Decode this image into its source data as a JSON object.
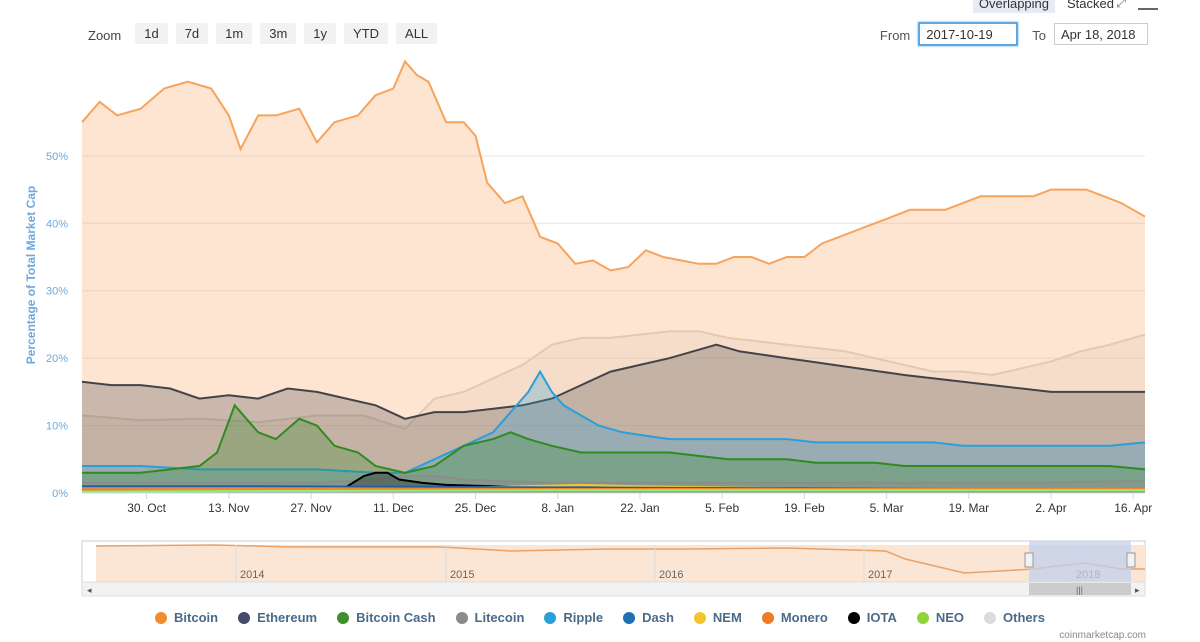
{
  "toolbar": {
    "zoom_label": "Zoom",
    "zoom_buttons": [
      "1d",
      "7d",
      "1m",
      "3m",
      "1y",
      "YTD",
      "ALL"
    ],
    "from_label": "From",
    "from_value": "2017-10-19",
    "to_label": "To",
    "to_value": "Apr 18, 2018",
    "mode_overlapping": "Overlapping",
    "mode_stacked": "Stacked"
  },
  "chart_data": {
    "type": "area",
    "ylabel": "Percentage of Total Market Cap",
    "yticks": [
      "0%",
      "10%",
      "20%",
      "30%",
      "40%",
      "50%"
    ],
    "ylim": [
      0,
      66
    ],
    "xlim": [
      0,
      181
    ],
    "xticks": [
      {
        "label": "30. Oct",
        "day": 11
      },
      {
        "label": "13. Nov",
        "day": 25
      },
      {
        "label": "27. Nov",
        "day": 39
      },
      {
        "label": "11. Dec",
        "day": 53
      },
      {
        "label": "25. Dec",
        "day": 67
      },
      {
        "label": "8. Jan",
        "day": 81
      },
      {
        "label": "22. Jan",
        "day": 95
      },
      {
        "label": "5. Feb",
        "day": 109
      },
      {
        "label": "19. Feb",
        "day": 123
      },
      {
        "label": "5. Mar",
        "day": 137
      },
      {
        "label": "19. Mar",
        "day": 151
      },
      {
        "label": "2. Apr",
        "day": 165
      },
      {
        "label": "16. Apr",
        "day": 179
      }
    ],
    "grid": true,
    "legend_position": "bottom",
    "series": [
      {
        "name": "Others",
        "color": "#d9d9d9",
        "points": [
          [
            0,
            11.5
          ],
          [
            10,
            10.8
          ],
          [
            20,
            11
          ],
          [
            30,
            10.5
          ],
          [
            40,
            11.5
          ],
          [
            48,
            11.5
          ],
          [
            55,
            9.5
          ],
          [
            60,
            14
          ],
          [
            65,
            15
          ],
          [
            70,
            17
          ],
          [
            75,
            19
          ],
          [
            80,
            22
          ],
          [
            85,
            23
          ],
          [
            90,
            23
          ],
          [
            95,
            23.5
          ],
          [
            100,
            24
          ],
          [
            105,
            24
          ],
          [
            110,
            23
          ],
          [
            115,
            22.5
          ],
          [
            120,
            22
          ],
          [
            125,
            21.5
          ],
          [
            130,
            21
          ],
          [
            135,
            20
          ],
          [
            140,
            19
          ],
          [
            145,
            18
          ],
          [
            150,
            18
          ],
          [
            155,
            17.5
          ],
          [
            160,
            18.5
          ],
          [
            165,
            19.5
          ],
          [
            170,
            21
          ],
          [
            175,
            22
          ],
          [
            181,
            23.5
          ]
        ]
      },
      {
        "name": "Bitcoin",
        "color": "#f7a35c",
        "points": [
          [
            0,
            55
          ],
          [
            3,
            58
          ],
          [
            6,
            56
          ],
          [
            10,
            57
          ],
          [
            14,
            60
          ],
          [
            18,
            61
          ],
          [
            22,
            60
          ],
          [
            25,
            56
          ],
          [
            27,
            51
          ],
          [
            30,
            56
          ],
          [
            33,
            56
          ],
          [
            37,
            57
          ],
          [
            40,
            52
          ],
          [
            43,
            55
          ],
          [
            47,
            56
          ],
          [
            50,
            59
          ],
          [
            53,
            60
          ],
          [
            55,
            64
          ],
          [
            57,
            62
          ],
          [
            59,
            61
          ],
          [
            62,
            55
          ],
          [
            65,
            55
          ],
          [
            67,
            53
          ],
          [
            69,
            46
          ],
          [
            72,
            43
          ],
          [
            75,
            44
          ],
          [
            78,
            38
          ],
          [
            81,
            37
          ],
          [
            84,
            34
          ],
          [
            87,
            34.5
          ],
          [
            90,
            33
          ],
          [
            93,
            33.5
          ],
          [
            96,
            36
          ],
          [
            99,
            35
          ],
          [
            102,
            34.5
          ],
          [
            105,
            34
          ],
          [
            108,
            34
          ],
          [
            111,
            35
          ],
          [
            114,
            35
          ],
          [
            117,
            34
          ],
          [
            120,
            35
          ],
          [
            123,
            35
          ],
          [
            126,
            37
          ],
          [
            129,
            38
          ],
          [
            132,
            39
          ],
          [
            135,
            40
          ],
          [
            138,
            41
          ],
          [
            141,
            42
          ],
          [
            144,
            42
          ],
          [
            147,
            42
          ],
          [
            150,
            43
          ],
          [
            153,
            44
          ],
          [
            156,
            44
          ],
          [
            159,
            44
          ],
          [
            162,
            44
          ],
          [
            165,
            45
          ],
          [
            168,
            45
          ],
          [
            171,
            45
          ],
          [
            174,
            44
          ],
          [
            177,
            43
          ],
          [
            181,
            41
          ]
        ]
      },
      {
        "name": "Ethereum",
        "color": "#434348",
        "points": [
          [
            0,
            16.5
          ],
          [
            5,
            16
          ],
          [
            10,
            16
          ],
          [
            15,
            15.5
          ],
          [
            20,
            14
          ],
          [
            25,
            14.5
          ],
          [
            30,
            14
          ],
          [
            35,
            15.5
          ],
          [
            40,
            15
          ],
          [
            45,
            14
          ],
          [
            50,
            13
          ],
          [
            55,
            11
          ],
          [
            60,
            12
          ],
          [
            65,
            12
          ],
          [
            70,
            12.5
          ],
          [
            75,
            13
          ],
          [
            80,
            14
          ],
          [
            85,
            16
          ],
          [
            90,
            18
          ],
          [
            95,
            19
          ],
          [
            100,
            20
          ],
          [
            104,
            21
          ],
          [
            108,
            22
          ],
          [
            112,
            21
          ],
          [
            116,
            20.5
          ],
          [
            120,
            20
          ],
          [
            124,
            19.5
          ],
          [
            128,
            19
          ],
          [
            132,
            18.5
          ],
          [
            136,
            18
          ],
          [
            140,
            17.5
          ],
          [
            145,
            17
          ],
          [
            150,
            16.5
          ],
          [
            155,
            16
          ],
          [
            160,
            15.5
          ],
          [
            165,
            15
          ],
          [
            170,
            15
          ],
          [
            175,
            15
          ],
          [
            181,
            15
          ]
        ]
      },
      {
        "name": "Ripple",
        "color": "#2b9fd8",
        "points": [
          [
            0,
            4
          ],
          [
            10,
            4
          ],
          [
            20,
            3.5
          ],
          [
            30,
            3.5
          ],
          [
            40,
            3.5
          ],
          [
            50,
            3
          ],
          [
            55,
            3
          ],
          [
            60,
            5
          ],
          [
            65,
            7
          ],
          [
            70,
            9
          ],
          [
            73,
            12
          ],
          [
            76,
            15
          ],
          [
            78,
            18
          ],
          [
            80,
            15
          ],
          [
            82,
            13
          ],
          [
            84,
            12
          ],
          [
            88,
            10
          ],
          [
            92,
            9
          ],
          [
            96,
            8.5
          ],
          [
            100,
            8
          ],
          [
            105,
            8
          ],
          [
            110,
            8
          ],
          [
            115,
            8
          ],
          [
            120,
            8
          ],
          [
            125,
            7.5
          ],
          [
            130,
            7.5
          ],
          [
            135,
            7.5
          ],
          [
            140,
            7.5
          ],
          [
            145,
            7.5
          ],
          [
            150,
            7
          ],
          [
            155,
            7
          ],
          [
            160,
            7
          ],
          [
            165,
            7
          ],
          [
            170,
            7
          ],
          [
            175,
            7
          ],
          [
            181,
            7.5
          ]
        ]
      },
      {
        "name": "Bitcoin Cash",
        "color": "#2f8a1f",
        "points": [
          [
            0,
            3
          ],
          [
            10,
            3
          ],
          [
            20,
            4
          ],
          [
            23,
            6
          ],
          [
            26,
            13
          ],
          [
            28,
            11
          ],
          [
            30,
            9
          ],
          [
            33,
            8
          ],
          [
            37,
            11
          ],
          [
            40,
            10
          ],
          [
            43,
            7
          ],
          [
            47,
            6
          ],
          [
            50,
            4
          ],
          [
            55,
            3
          ],
          [
            60,
            4
          ],
          [
            65,
            7
          ],
          [
            70,
            8
          ],
          [
            73,
            9
          ],
          [
            76,
            8
          ],
          [
            80,
            7
          ],
          [
            85,
            6
          ],
          [
            90,
            6
          ],
          [
            95,
            6
          ],
          [
            100,
            6
          ],
          [
            105,
            5.5
          ],
          [
            110,
            5
          ],
          [
            115,
            5
          ],
          [
            120,
            5
          ],
          [
            125,
            4.5
          ],
          [
            130,
            4.5
          ],
          [
            135,
            4.5
          ],
          [
            140,
            4
          ],
          [
            145,
            4
          ],
          [
            150,
            4
          ],
          [
            155,
            4
          ],
          [
            160,
            4
          ],
          [
            165,
            4
          ],
          [
            170,
            4
          ],
          [
            175,
            4
          ],
          [
            181,
            3.5
          ]
        ]
      },
      {
        "name": "Litecoin",
        "color": "#8c8c8c",
        "points": [
          [
            0,
            1.5
          ],
          [
            20,
            1.5
          ],
          [
            40,
            1.5
          ],
          [
            50,
            2
          ],
          [
            55,
            2.5
          ],
          [
            60,
            2.5
          ],
          [
            65,
            2
          ],
          [
            70,
            1.8
          ],
          [
            80,
            1.5
          ],
          [
            90,
            1.5
          ],
          [
            100,
            1.5
          ],
          [
            120,
            1.5
          ],
          [
            140,
            1.5
          ],
          [
            160,
            1.5
          ],
          [
            181,
            1.8
          ]
        ]
      },
      {
        "name": "IOTA",
        "color": "#000000",
        "points": [
          [
            0,
            0.6
          ],
          [
            20,
            0.6
          ],
          [
            40,
            0.7
          ],
          [
            45,
            0.9
          ],
          [
            48,
            2.5
          ],
          [
            50,
            3
          ],
          [
            52,
            3
          ],
          [
            54,
            2
          ],
          [
            58,
            1.5
          ],
          [
            62,
            1.2
          ],
          [
            70,
            1
          ],
          [
            80,
            0.8
          ],
          [
            100,
            0.7
          ],
          [
            120,
            0.6
          ],
          [
            140,
            0.5
          ],
          [
            160,
            0.5
          ],
          [
            181,
            0.5
          ]
        ]
      },
      {
        "name": "NEM",
        "color": "#f4c52b",
        "points": [
          [
            0,
            0.4
          ],
          [
            40,
            0.5
          ],
          [
            60,
            0.7
          ],
          [
            75,
            1
          ],
          [
            85,
            1.2
          ],
          [
            95,
            1
          ],
          [
            110,
            0.8
          ],
          [
            130,
            0.6
          ],
          [
            150,
            0.5
          ],
          [
            181,
            0.5
          ]
        ]
      },
      {
        "name": "Dash",
        "color": "#1f5fa8",
        "points": [
          [
            0,
            1
          ],
          [
            30,
            1
          ],
          [
            60,
            0.9
          ],
          [
            90,
            0.8
          ],
          [
            120,
            0.7
          ],
          [
            150,
            0.6
          ],
          [
            181,
            0.5
          ]
        ]
      },
      {
        "name": "Monero",
        "color": "#f28432",
        "points": [
          [
            0,
            0.7
          ],
          [
            40,
            0.7
          ],
          [
            80,
            0.6
          ],
          [
            120,
            0.6
          ],
          [
            181,
            0.6
          ]
        ]
      },
      {
        "name": "NEO",
        "color": "#90ed7d",
        "points": [
          [
            0,
            0.2
          ],
          [
            40,
            0.3
          ],
          [
            80,
            0.4
          ],
          [
            120,
            0.4
          ],
          [
            181,
            0.4
          ]
        ]
      }
    ],
    "navigator": {
      "year_labels": [
        "2014",
        "2015",
        "2016",
        "2017",
        "2018"
      ]
    }
  },
  "legend": [
    {
      "name": "Bitcoin",
      "color": "#f28c2c"
    },
    {
      "name": "Ethereum",
      "color": "#434a6e"
    },
    {
      "name": "Bitcoin Cash",
      "color": "#3f8f2e"
    },
    {
      "name": "Litecoin",
      "color": "#8c8c8c"
    },
    {
      "name": "Ripple",
      "color": "#2b9fd8"
    },
    {
      "name": "Dash",
      "color": "#1f6fb4"
    },
    {
      "name": "NEM",
      "color": "#f4c52b"
    },
    {
      "name": "Monero",
      "color": "#ef7a28"
    },
    {
      "name": "IOTA",
      "color": "#000000"
    },
    {
      "name": "NEO",
      "color": "#90d33b"
    },
    {
      "name": "Others",
      "color": "#dcdcdc"
    }
  ],
  "credit": "coinmarketcap.com"
}
